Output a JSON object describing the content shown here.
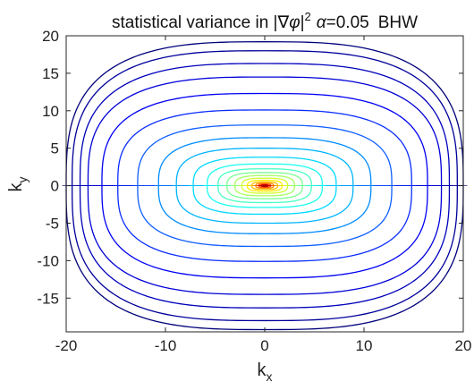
{
  "chart_data": {
    "type": "contour",
    "title_prefix": "statistical variance in |",
    "title_nabla": "∇",
    "title_phi": "φ",
    "title_bar": "|",
    "title_exp": "2",
    "title_alpha": "α",
    "title_alpha_value": "=0.05",
    "title_suffix": "BHW",
    "xlabel_main": "k",
    "xlabel_sub": "x",
    "ylabel_main": "k",
    "ylabel_sub": "y",
    "xlim": [
      -20,
      20
    ],
    "ylim": [
      -19.5,
      20
    ],
    "xticks": [
      -20,
      -10,
      0,
      10,
      20
    ],
    "xtick_labels": [
      "-20",
      "-10",
      "0",
      "10",
      "20"
    ],
    "yticks": [
      -15,
      -10,
      -5,
      0,
      5,
      10,
      15,
      20
    ],
    "ytick_labels": [
      "-15",
      "-10",
      "-5",
      "0",
      "5",
      "10",
      "15",
      "20"
    ],
    "grid": false,
    "colormap": "jet",
    "contours": [
      {
        "a": 20.0,
        "b": 19.2,
        "color": "#00007a"
      },
      {
        "a": 19.4,
        "b": 18.0,
        "color": "#00009a"
      },
      {
        "a": 18.6,
        "b": 16.3,
        "color": "#0000bb"
      },
      {
        "a": 17.8,
        "b": 14.5,
        "color": "#0000d8"
      },
      {
        "a": 16.4,
        "b": 12.3,
        "color": "#0000f5"
      },
      {
        "a": 14.8,
        "b": 10.1,
        "color": "#0a2dff"
      },
      {
        "a": 12.8,
        "b": 8.1,
        "color": "#0f5fff"
      },
      {
        "a": 10.7,
        "b": 6.4,
        "color": "#008cff"
      },
      {
        "a": 8.9,
        "b": 5.0,
        "color": "#00b4ff"
      },
      {
        "a": 7.2,
        "b": 3.8,
        "color": "#00d8ff"
      },
      {
        "a": 5.8,
        "b": 2.9,
        "color": "#19fff0"
      },
      {
        "a": 4.7,
        "b": 2.25,
        "color": "#46ffc3"
      },
      {
        "a": 3.8,
        "b": 1.75,
        "color": "#78ff91"
      },
      {
        "a": 3.0,
        "b": 1.35,
        "color": "#a5ff5f"
      },
      {
        "a": 2.3,
        "b": 1.0,
        "color": "#d2ff2d"
      },
      {
        "a": 1.75,
        "b": 0.72,
        "color": "#fff000"
      },
      {
        "a": 1.3,
        "b": 0.5,
        "color": "#ffbe00"
      },
      {
        "a": 0.9,
        "b": 0.33,
        "color": "#ff8700"
      },
      {
        "a": 0.6,
        "b": 0.2,
        "color": "#ff4b00"
      },
      {
        "a": 0.35,
        "b": 0.1,
        "color": "#e60000"
      },
      {
        "a": 0.18,
        "b": 0.05,
        "color": "#a00000"
      }
    ]
  }
}
